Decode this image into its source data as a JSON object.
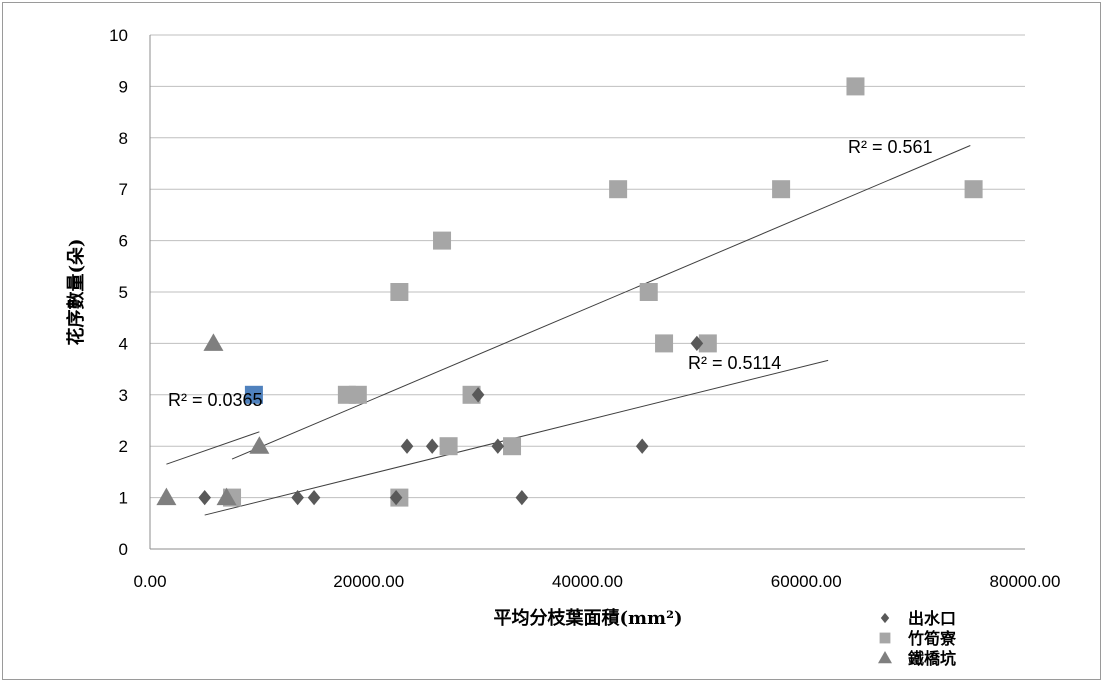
{
  "chart_data": {
    "type": "scatter",
    "title": "",
    "xlabel": "平均分枝葉面積(mm²)",
    "ylabel": "花序數量(朵)",
    "xlim": [
      0,
      80000
    ],
    "ylim": [
      0,
      10
    ],
    "x_ticks": [
      "0.00",
      "20000.00",
      "40000.00",
      "60000.00",
      "80000.00"
    ],
    "y_ticks": [
      "0",
      "1",
      "2",
      "3",
      "4",
      "5",
      "6",
      "7",
      "8",
      "9",
      "10"
    ],
    "grid": "horizontal",
    "legend_position": "bottom-right",
    "series": [
      {
        "name": "出水口",
        "marker": "diamond",
        "color": "#595959",
        "points": [
          [
            5000,
            1
          ],
          [
            13500,
            1
          ],
          [
            15000,
            1
          ],
          [
            22500,
            1
          ],
          [
            23500,
            2
          ],
          [
            25800,
            2
          ],
          [
            30000,
            3
          ],
          [
            31800,
            2
          ],
          [
            34000,
            1
          ],
          [
            45000,
            2
          ],
          [
            50000,
            4
          ]
        ],
        "trendline": {
          "x": [
            5000,
            62000
          ],
          "y": [
            0.66,
            3.67
          ],
          "r2_label": "R² = 0.5114"
        }
      },
      {
        "name": "竹筍寮",
        "marker": "square",
        "color": "#a6a6a6",
        "points": [
          [
            7500,
            1
          ],
          [
            18000,
            3
          ],
          [
            19000,
            3
          ],
          [
            22800,
            5
          ],
          [
            22800,
            1
          ],
          [
            26700,
            6
          ],
          [
            27300,
            2
          ],
          [
            29400,
            3
          ],
          [
            33100,
            2
          ],
          [
            42800,
            7
          ],
          [
            45600,
            5
          ],
          [
            47000,
            4
          ],
          [
            51000,
            4
          ],
          [
            57700,
            7
          ],
          [
            64500,
            9
          ],
          [
            75300,
            7
          ]
        ],
        "trendline": {
          "x": [
            7500,
            75000
          ],
          "y": [
            1.75,
            7.85
          ],
          "r2_label": "R² = 0.561"
        }
      },
      {
        "name": "鐵橋坑",
        "marker": "triangle",
        "color": "#7f7f7f",
        "points": [
          [
            1500,
            1
          ],
          [
            5800,
            4
          ],
          [
            7000,
            1
          ],
          [
            10000,
            2
          ]
        ],
        "trendline": {
          "x": [
            1500,
            10000
          ],
          "y": [
            1.65,
            2.28
          ],
          "r2_label": "R² = 0.0365"
        }
      }
    ],
    "extra_points": [
      {
        "x": 9500,
        "y": 3,
        "marker": "square",
        "color": "#4f81bd"
      }
    ]
  }
}
